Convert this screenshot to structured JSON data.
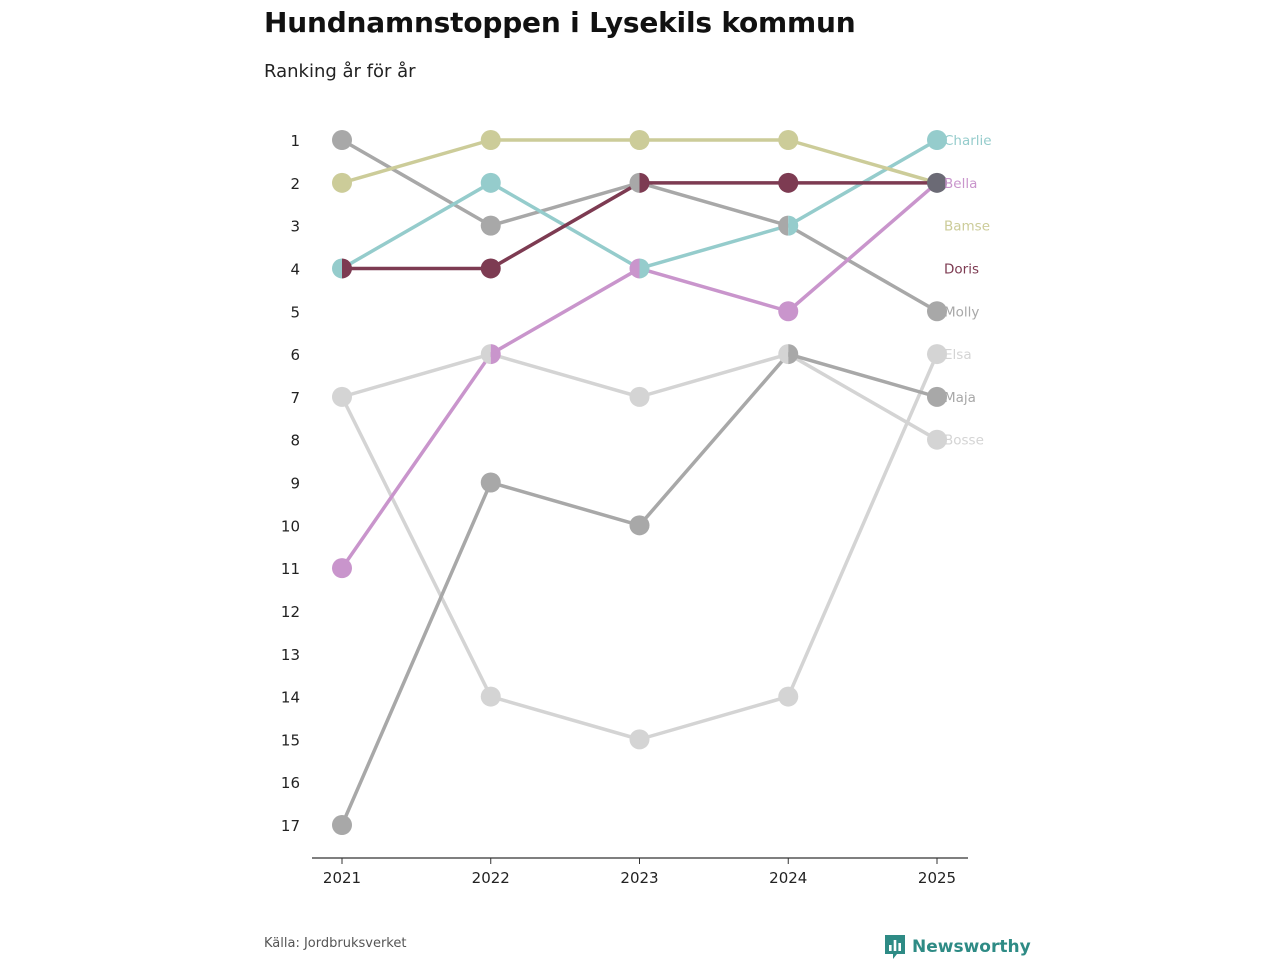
{
  "title": "Hundnamnstoppen i Lysekils kommun",
  "subtitle": "Ranking år för år",
  "source": "Källa: Jordbruksverket",
  "brand": "Newsworthy",
  "icons": {
    "brand_logo": "newsworthy-logo-icon"
  },
  "colors": {
    "brand": "#2e8b85",
    "axis": "#333333",
    "tick_text": "#222222"
  },
  "chart_data": {
    "type": "line",
    "subtype": "bump",
    "x": [
      "2021",
      "2022",
      "2023",
      "2024",
      "2025"
    ],
    "y_ticks": [
      "1",
      "2",
      "3",
      "4",
      "5",
      "6",
      "7",
      "8",
      "9",
      "10",
      "11",
      "12",
      "13",
      "14",
      "15",
      "16",
      "17"
    ],
    "ylim": [
      1,
      17
    ],
    "y_inverted": true,
    "xlabel": "",
    "ylabel": "",
    "legend": "right-end labels",
    "series": [
      {
        "name": "Elsa",
        "label": "Elsa",
        "color": "#d4d4d4",
        "values": [
          7,
          14,
          15,
          14,
          6
        ]
      },
      {
        "name": "Bosse",
        "label": "Bosse",
        "color": "#d4d4d4",
        "values": [
          7,
          6,
          7,
          6,
          8
        ]
      },
      {
        "name": "Maja",
        "label": "Maja",
        "color": "#a8a8a8",
        "values": [
          17,
          9,
          10,
          6,
          7
        ]
      },
      {
        "name": "Molly",
        "label": "Molly",
        "color": "#a8a8a8",
        "values": [
          1,
          3,
          2,
          3,
          5
        ]
      },
      {
        "name": "Bella",
        "label": "Bella",
        "color": "#c995cc",
        "values": [
          11,
          6,
          4,
          5,
          2
        ]
      },
      {
        "name": "Charlie",
        "label": "Charlie",
        "color": "#95cccc",
        "values": [
          4,
          2,
          4,
          3,
          1
        ]
      },
      {
        "name": "Bamse",
        "label": "Bamse",
        "color": "#cccc99",
        "values": [
          2,
          1,
          1,
          1,
          2
        ]
      },
      {
        "name": "Doris",
        "label": "Doris",
        "color": "#7d3b52",
        "values": [
          4,
          4,
          2,
          2,
          2
        ]
      }
    ]
  }
}
